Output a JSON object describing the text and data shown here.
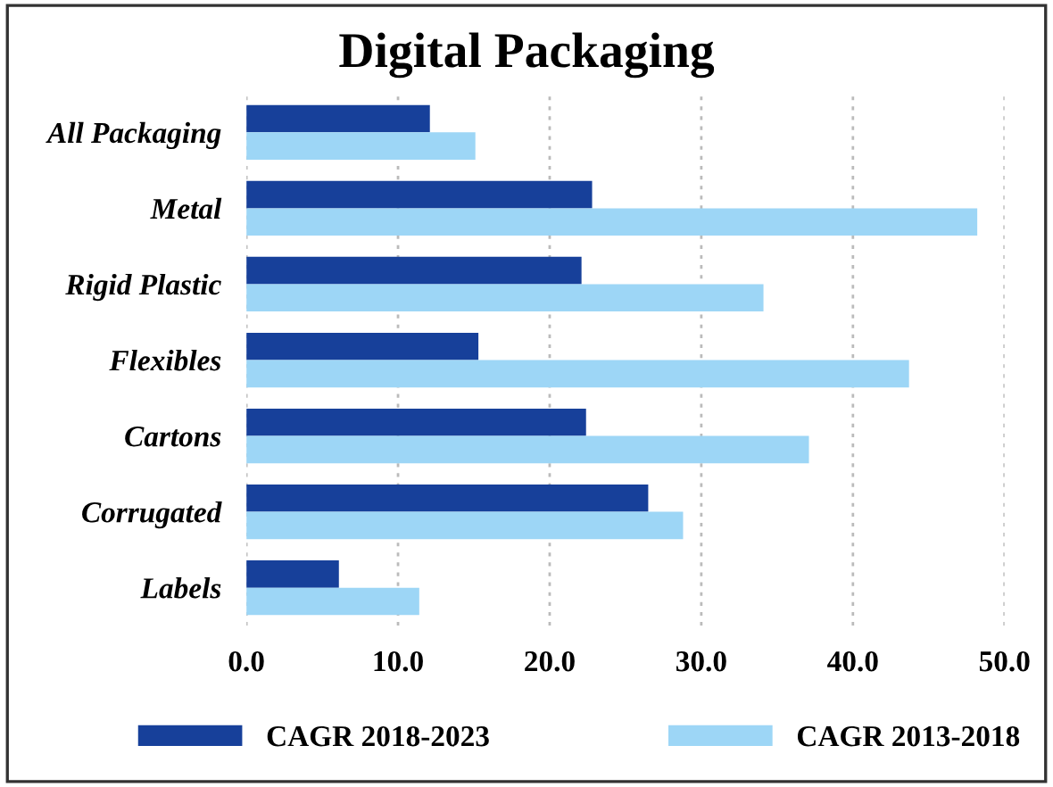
{
  "chart_data": {
    "type": "bar",
    "orientation": "horizontal",
    "title": "Digital Packaging",
    "categories": [
      "All Packaging",
      "Metal",
      "Rigid Plastic",
      "Flexibles",
      "Cartons",
      "Corrugated",
      "Labels"
    ],
    "series": [
      {
        "name": "CAGR 2018-2023",
        "color": "#17409a",
        "values": [
          12.1,
          22.8,
          22.1,
          15.3,
          22.4,
          26.5,
          6.1
        ]
      },
      {
        "name": "CAGR 2013-2018",
        "color": "#9dd6f6",
        "values": [
          15.1,
          48.2,
          34.1,
          43.7,
          37.1,
          28.8,
          11.4
        ]
      }
    ],
    "xlim": [
      0,
      50
    ],
    "xticks": [
      {
        "value": 0,
        "label": "0.0"
      },
      {
        "value": 10,
        "label": "10.0"
      },
      {
        "value": 20,
        "label": "20.0"
      },
      {
        "value": 30,
        "label": "30.0"
      },
      {
        "value": 40,
        "label": "40.0"
      },
      {
        "value": 50,
        "label": "50.0"
      }
    ],
    "grid": "x",
    "legend": "bottom"
  }
}
